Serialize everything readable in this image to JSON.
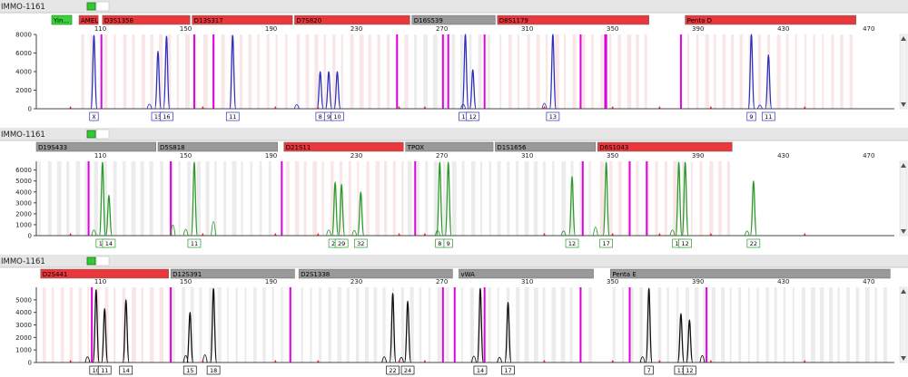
{
  "panels": [
    {
      "sample": "IMMO-1161",
      "btn_text": "Yin...",
      "ymax": 8000,
      "yticks": [
        0,
        2000,
        4000,
        6000,
        8000
      ],
      "xticks": [
        110,
        150,
        190,
        230,
        270,
        310,
        350,
        390,
        430,
        470
      ],
      "dye": "#2f2fbf",
      "loci": [
        {
          "name": "AMEL",
          "start": 100,
          "end": 109,
          "color": "#e8383c"
        },
        {
          "name": "D3S1358",
          "start": 111,
          "end": 152,
          "color": "#e8383c"
        },
        {
          "name": "D13S317",
          "start": 153,
          "end": 200,
          "color": "#e8383c"
        },
        {
          "name": "D7S820",
          "start": 201,
          "end": 255,
          "color": "#e8383c"
        },
        {
          "name": "D16S539",
          "start": 256,
          "end": 295,
          "color": "#999999"
        },
        {
          "name": "D8S1179",
          "start": 296,
          "end": 367,
          "color": "#e8383c"
        },
        {
          "name": "Penta D",
          "start": 384,
          "end": 464,
          "color": "#e8383c"
        }
      ],
      "peaks": [
        {
          "x": 107,
          "h": 7900,
          "label": "X"
        },
        {
          "x": 137,
          "h": 6200,
          "label": "15"
        },
        {
          "x": 141,
          "h": 7800,
          "label": "16"
        },
        {
          "x": 172,
          "h": 7900,
          "label": "11"
        },
        {
          "x": 213,
          "h": 4000,
          "label": "8"
        },
        {
          "x": 217,
          "h": 4000,
          "label": "9"
        },
        {
          "x": 221,
          "h": 4000,
          "label": "10"
        },
        {
          "x": 281,
          "h": 8000,
          "label": "11"
        },
        {
          "x": 284.5,
          "h": 4200,
          "label": "12"
        },
        {
          "x": 322,
          "h": 8000,
          "label": "13"
        },
        {
          "x": 415,
          "h": 8000,
          "label": "9"
        },
        {
          "x": 423,
          "h": 5800,
          "label": "11"
        }
      ],
      "small": [
        {
          "x": 133,
          "h": 700
        },
        {
          "x": 202,
          "h": 600
        },
        {
          "x": 280,
          "h": 700
        },
        {
          "x": 318,
          "h": 900
        },
        {
          "x": 419,
          "h": 500
        }
      ],
      "mag": [
        110.5,
        154,
        163,
        249,
        270.5,
        273,
        290,
        335,
        347,
        346.5,
        382
      ]
    },
    {
      "sample": "IMMO-1161",
      "ymax": 6800,
      "yticks": [
        0,
        1000,
        2000,
        3000,
        4000,
        5000,
        6000
      ],
      "xticks": [
        110,
        150,
        190,
        230,
        270,
        310,
        350,
        390,
        430,
        470
      ],
      "dye": "#2a9a2a",
      "loci": [
        {
          "name": "D19S433",
          "start": 80,
          "end": 136,
          "color": "#999999"
        },
        {
          "name": "D5S818",
          "start": 137,
          "end": 193,
          "color": "#999999"
        },
        {
          "name": "D21S11",
          "start": 196,
          "end": 252,
          "color": "#e8383c"
        },
        {
          "name": "TPOX",
          "start": 253,
          "end": 294,
          "color": "#999999"
        },
        {
          "name": "D1S1656",
          "start": 295,
          "end": 342,
          "color": "#999999"
        },
        {
          "name": "D6S1043",
          "start": 343,
          "end": 406,
          "color": "#e8383c"
        }
      ],
      "peaks": [
        {
          "x": 111,
          "h": 6700,
          "label": "13"
        },
        {
          "x": 114,
          "h": 3700,
          "label": "14"
        },
        {
          "x": 154,
          "h": 6700,
          "label": "11"
        },
        {
          "x": 220,
          "h": 4900,
          "label": "20"
        },
        {
          "x": 223,
          "h": 4700,
          "label": "29"
        },
        {
          "x": 232,
          "h": 4000,
          "label": "32"
        },
        {
          "x": 269,
          "h": 6700,
          "label": "8"
        },
        {
          "x": 273,
          "h": 6700,
          "label": "9"
        },
        {
          "x": 331,
          "h": 5400,
          "label": "12"
        },
        {
          "x": 347,
          "h": 6700,
          "label": "17"
        },
        {
          "x": 381,
          "h": 6700,
          "label": "11"
        },
        {
          "x": 384,
          "h": 6700,
          "label": "12"
        },
        {
          "x": 416,
          "h": 5000,
          "label": "22"
        }
      ],
      "small": [
        {
          "x": 107,
          "h": 800
        },
        {
          "x": 144,
          "h": 1700
        },
        {
          "x": 150,
          "h": 900
        },
        {
          "x": 163,
          "h": 2300
        },
        {
          "x": 217,
          "h": 800
        },
        {
          "x": 229,
          "h": 700
        },
        {
          "x": 268,
          "h": 700
        },
        {
          "x": 327,
          "h": 600
        },
        {
          "x": 342,
          "h": 1300
        },
        {
          "x": 378,
          "h": 800
        },
        {
          "x": 413,
          "h": 600
        }
      ],
      "mag": [
        104.5,
        143,
        195,
        257.5,
        336,
        366,
        358
      ]
    },
    {
      "sample": "IMMO-1161",
      "ymax": 6000,
      "yticks": [
        0,
        1000,
        2000,
        3000,
        4000,
        5000
      ],
      "xticks": [
        110,
        150,
        190,
        230,
        270,
        310,
        350,
        390,
        430,
        470
      ],
      "dye": "#111111",
      "loci": [
        {
          "name": "D2S441",
          "start": 82,
          "end": 142,
          "color": "#e8383c"
        },
        {
          "name": "D12S391",
          "start": 143,
          "end": 201,
          "color": "#999999"
        },
        {
          "name": "D2S1338",
          "start": 203,
          "end": 275,
          "color": "#999999"
        },
        {
          "name": "vWA",
          "start": 278,
          "end": 341,
          "color": "#999999"
        },
        {
          "name": "Penta E",
          "start": 349,
          "end": 480,
          "color": "#999999"
        }
      ],
      "peaks": [
        {
          "x": 108,
          "h": 5800,
          "label": "10"
        },
        {
          "x": 112,
          "h": 4300,
          "label": "11"
        },
        {
          "x": 122,
          "h": 5000,
          "label": "14"
        },
        {
          "x": 152,
          "h": 4000,
          "label": "15"
        },
        {
          "x": 163,
          "h": 5900,
          "label": "18"
        },
        {
          "x": 247,
          "h": 5500,
          "label": "22"
        },
        {
          "x": 254,
          "h": 4900,
          "label": "24"
        },
        {
          "x": 288,
          "h": 5900,
          "label": "14"
        },
        {
          "x": 301,
          "h": 4800,
          "label": "17"
        },
        {
          "x": 367,
          "h": 5900,
          "label": "7"
        },
        {
          "x": 382,
          "h": 3900,
          "label": "11"
        },
        {
          "x": 386,
          "h": 3400,
          "label": "12"
        }
      ],
      "small": [
        {
          "x": 104,
          "h": 700
        },
        {
          "x": 150,
          "h": 900
        },
        {
          "x": 159,
          "h": 1000
        },
        {
          "x": 243,
          "h": 700
        },
        {
          "x": 251,
          "h": 600
        },
        {
          "x": 285,
          "h": 800
        },
        {
          "x": 297,
          "h": 600
        },
        {
          "x": 364,
          "h": 700
        },
        {
          "x": 392,
          "h": 900
        }
      ],
      "mag": [
        106,
        143,
        199,
        270.5,
        276,
        290,
        335,
        358,
        394
      ]
    }
  ]
}
